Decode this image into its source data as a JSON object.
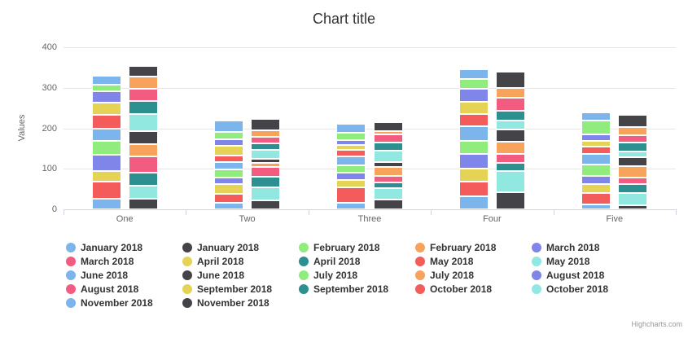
{
  "page": {
    "credit": "Highcharts.com"
  },
  "colors": {
    "background": "#ffffff",
    "axis_line": "#ccd6eb",
    "gridline": "#e6e6e6",
    "axis_label": "#666666",
    "title_text": "#333333",
    "legend_text": "#333333",
    "credit_text": "#999999",
    "segment_border": "#ffffff"
  },
  "chart_data": {
    "type": "bar",
    "variant": "grouped-stacked-column",
    "title": "Chart title",
    "xlabel": "",
    "ylabel": "Values",
    "ylim": [
      0,
      400
    ],
    "yticks": [
      0,
      100,
      200,
      300,
      400
    ],
    "grid": true,
    "legend_position": "bottom",
    "categories": [
      "One",
      "Two",
      "Three",
      "Four",
      "Five"
    ],
    "stacks": [
      "left",
      "right"
    ],
    "series": [
      {
        "name": "January 2018",
        "color": "#7cb5ec",
        "stack": "left",
        "values": [
          22,
          28,
          21,
          24,
          21
        ]
      },
      {
        "name": "January 2018",
        "color": "#434348",
        "stack": "right",
        "values": [
          27,
          28,
          22,
          40,
          30
        ]
      },
      {
        "name": "February 2018",
        "color": "#90ed7d",
        "stack": "left",
        "values": [
          16,
          19,
          18,
          24,
          33
        ]
      },
      {
        "name": "February 2018",
        "color": "#f7a35c",
        "stack": "right",
        "values": [
          29,
          16,
          8,
          24,
          21
        ]
      },
      {
        "name": "March 2018",
        "color": "#8085e9",
        "stack": "left",
        "values": [
          28,
          16,
          14,
          32,
          18
        ]
      },
      {
        "name": "March 2018",
        "color": "#f15c80",
        "stack": "right",
        "values": [
          30,
          17,
          21,
          32,
          19
        ]
      },
      {
        "name": "April 2018",
        "color": "#e4d354",
        "stack": "left",
        "values": [
          30,
          24,
          11,
          30,
          14
        ]
      },
      {
        "name": "April 2018",
        "color": "#2b908f",
        "stack": "right",
        "values": [
          33,
          17,
          21,
          24,
          22
        ]
      },
      {
        "name": "May 2018",
        "color": "#f45b5b",
        "stack": "left",
        "values": [
          34,
          16,
          16,
          31,
          18
        ]
      },
      {
        "name": "May 2018",
        "color": "#91e8e1",
        "stack": "right",
        "values": [
          41,
          22,
          28,
          21,
          14
        ]
      },
      {
        "name": "June 2018",
        "color": "#7cb5ec",
        "stack": "left",
        "values": [
          31,
          18,
          23,
          36,
          25
        ]
      },
      {
        "name": "June 2018",
        "color": "#434348",
        "stack": "right",
        "values": [
          34,
          9,
          11,
          32,
          22
        ]
      },
      {
        "name": "July 2018",
        "color": "#90ed7d",
        "stack": "left",
        "values": [
          34,
          21,
          18,
          33,
          29
        ]
      },
      {
        "name": "July 2018",
        "color": "#f7a35c",
        "stack": "right",
        "values": [
          29,
          11,
          22,
          29,
          27
        ]
      },
      {
        "name": "August 2018",
        "color": "#8085e9",
        "stack": "left",
        "values": [
          40,
          16,
          17,
          36,
          20
        ]
      },
      {
        "name": "August 2018",
        "color": "#f15c80",
        "stack": "right",
        "values": [
          40,
          23,
          17,
          22,
          16
        ]
      },
      {
        "name": "September 2018",
        "color": "#e4d354",
        "stack": "left",
        "values": [
          27,
          23,
          19,
          31,
          21
        ]
      },
      {
        "name": "September 2018",
        "color": "#2b908f",
        "stack": "right",
        "values": [
          32,
          26,
          13,
          21,
          23
        ]
      },
      {
        "name": "October 2018",
        "color": "#f45b5b",
        "stack": "left",
        "values": [
          41,
          23,
          38,
          36,
          29
        ]
      },
      {
        "name": "October 2018",
        "color": "#91e8e1",
        "stack": "right",
        "values": [
          33,
          33,
          29,
          52,
          29
        ]
      },
      {
        "name": "November 2018",
        "color": "#7cb5ec",
        "stack": "left",
        "values": [
          27,
          16,
          16,
          33,
          12
        ]
      },
      {
        "name": "November 2018",
        "color": "#434348",
        "stack": "right",
        "values": [
          26,
          22,
          24,
          42,
          11
        ]
      }
    ]
  }
}
